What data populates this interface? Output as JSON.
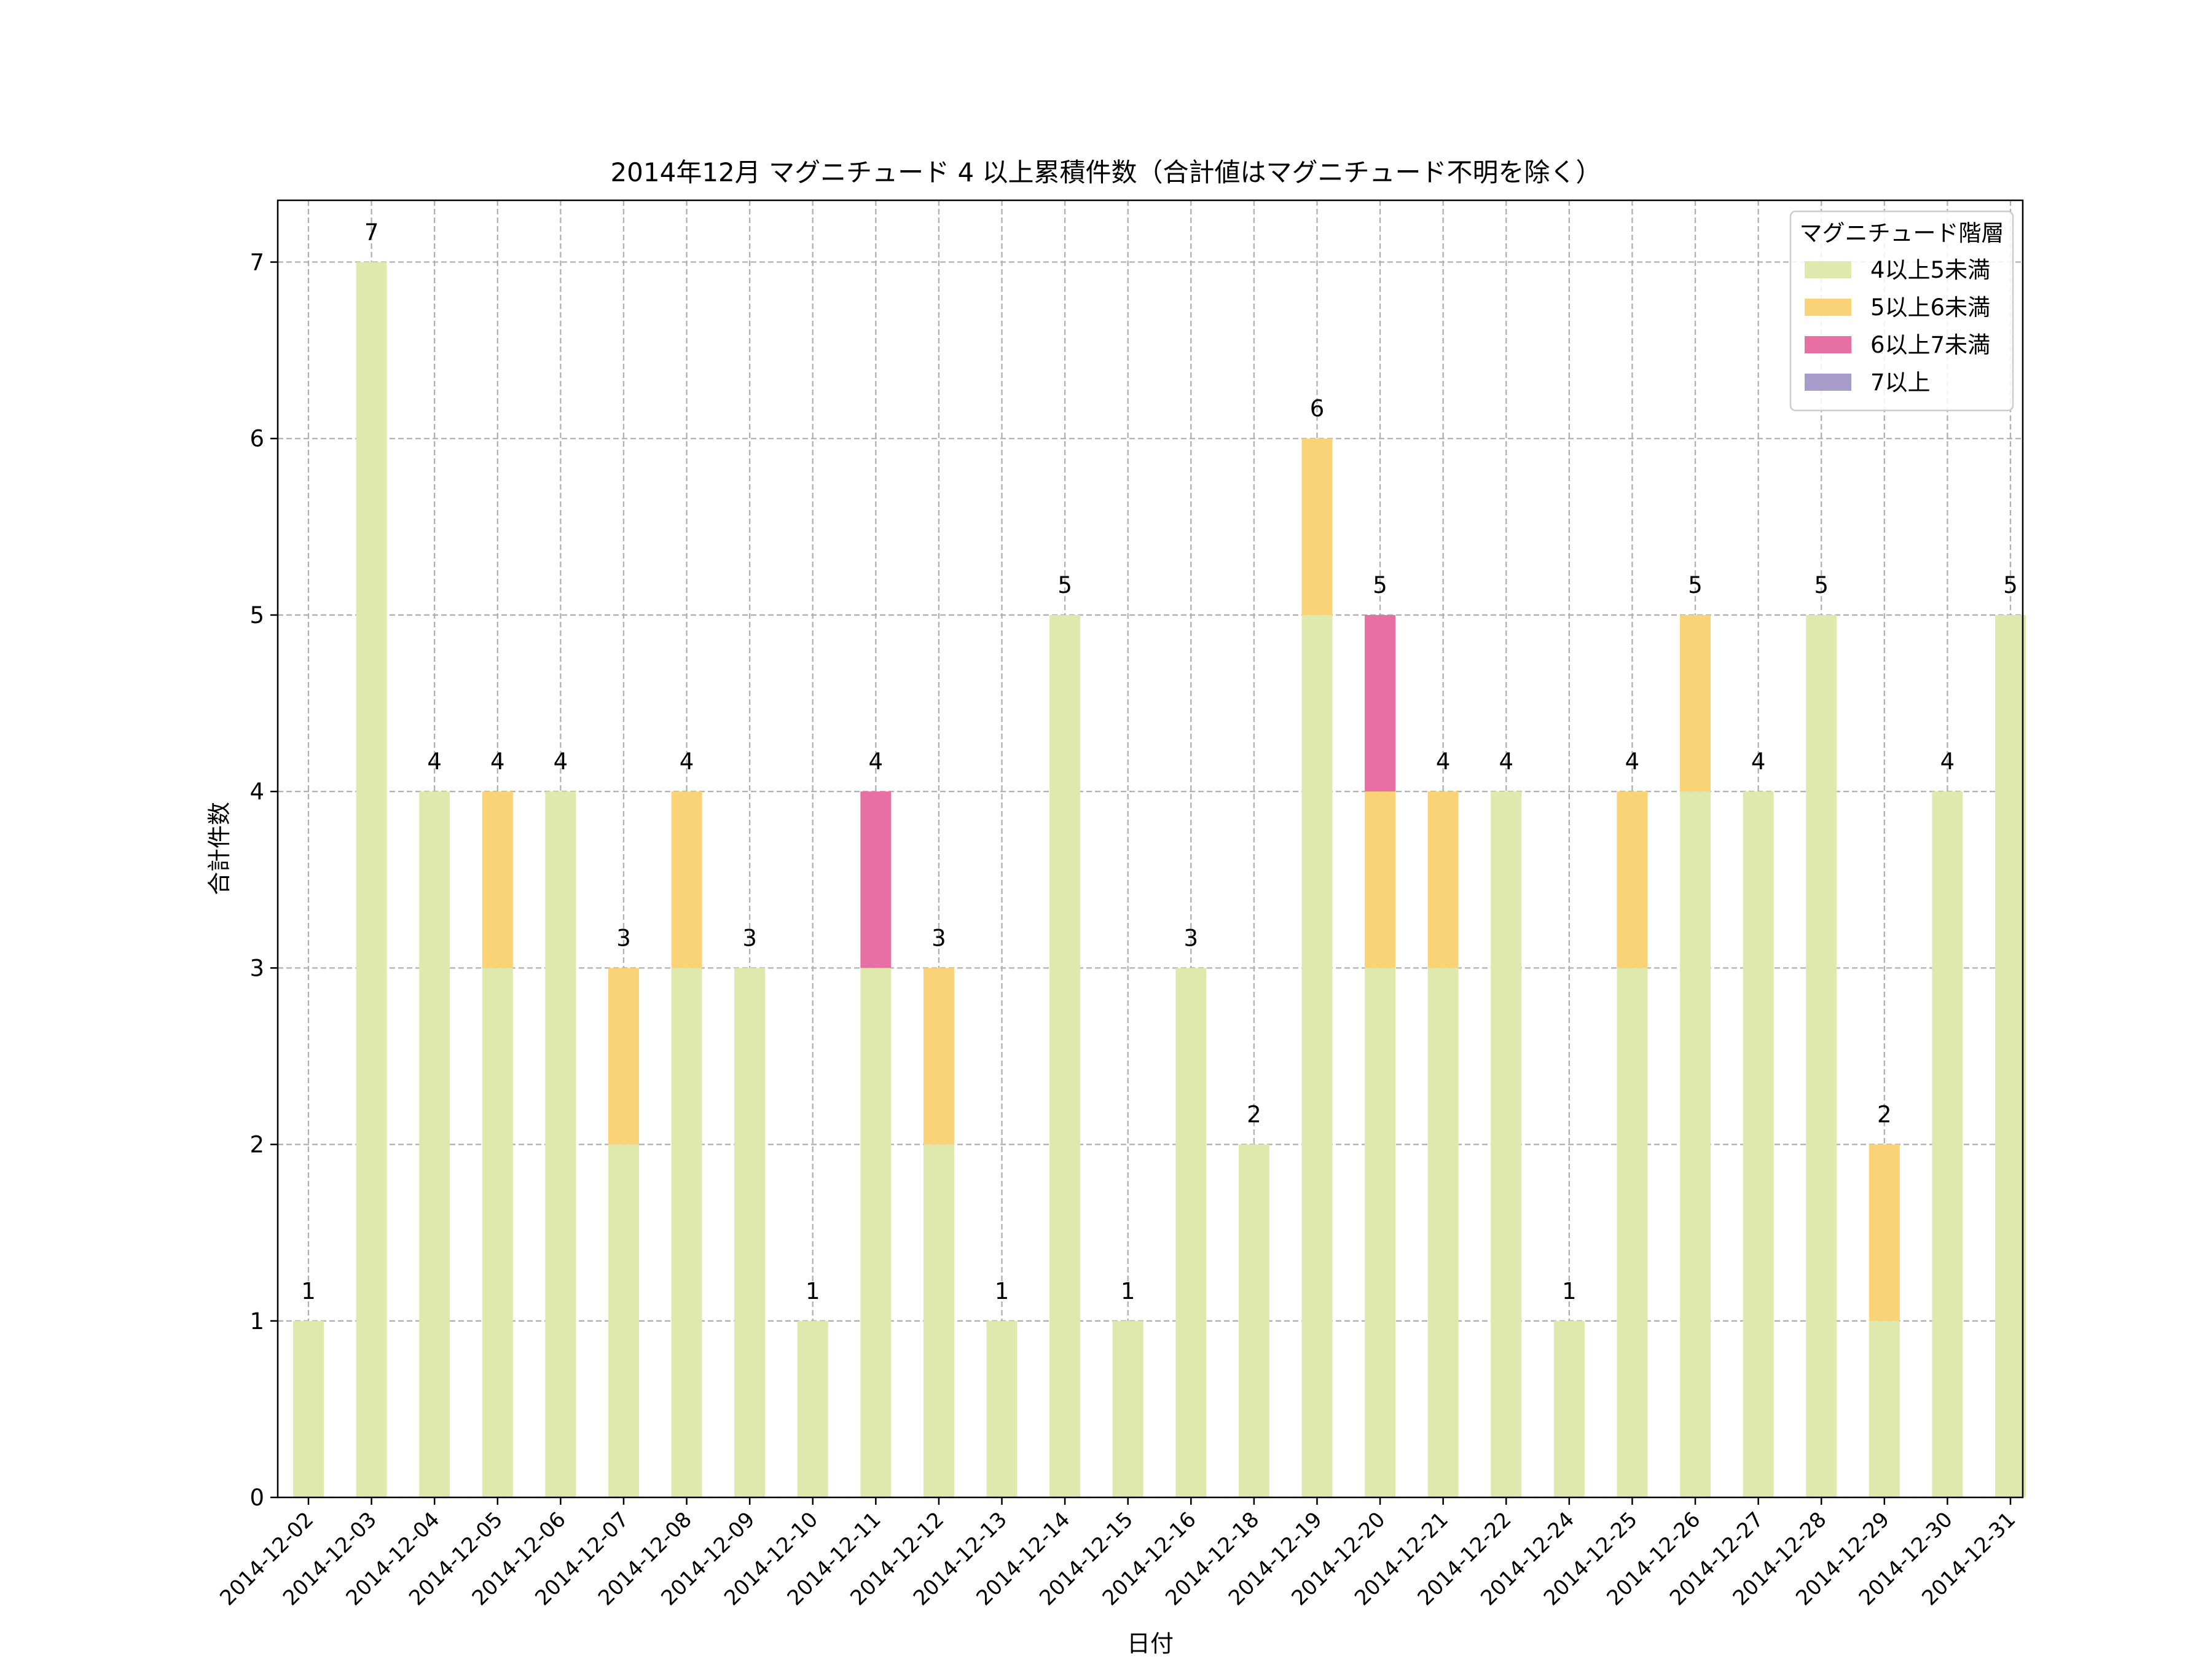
{
  "chart_data": {
    "type": "bar",
    "stacked": true,
    "title": "2014年12月 マグニチュード 4 以上累積件数（合計値はマグニチュード不明を除く）",
    "xlabel": "日付",
    "ylabel": "合計件数",
    "ylim": [
      0,
      7.35
    ],
    "yticks": [
      0,
      1,
      2,
      3,
      4,
      5,
      6,
      7
    ],
    "grid": true,
    "legend": {
      "title": "マグニチュード階層",
      "position": "top-right"
    },
    "categories": [
      "2014-12-02",
      "2014-12-03",
      "2014-12-04",
      "2014-12-05",
      "2014-12-06",
      "2014-12-07",
      "2014-12-08",
      "2014-12-09",
      "2014-12-10",
      "2014-12-11",
      "2014-12-12",
      "2014-12-13",
      "2014-12-14",
      "2014-12-15",
      "2014-12-16",
      "2014-12-18",
      "2014-12-19",
      "2014-12-20",
      "2014-12-21",
      "2014-12-22",
      "2014-12-24",
      "2014-12-25",
      "2014-12-26",
      "2014-12-27",
      "2014-12-28",
      "2014-12-29",
      "2014-12-30",
      "2014-12-31"
    ],
    "series": [
      {
        "name": "4以上5未満",
        "color": "#dfe9ad",
        "values": [
          1,
          7,
          4,
          3,
          4,
          2,
          3,
          3,
          1,
          3,
          2,
          1,
          5,
          1,
          3,
          2,
          5,
          3,
          3,
          4,
          1,
          3,
          4,
          4,
          5,
          1,
          4,
          5
        ]
      },
      {
        "name": "5以上6未満",
        "color": "#fbd377",
        "values": [
          0,
          0,
          0,
          1,
          0,
          1,
          1,
          0,
          0,
          0,
          1,
          0,
          0,
          0,
          0,
          0,
          1,
          1,
          1,
          0,
          0,
          1,
          1,
          0,
          0,
          1,
          0,
          0
        ]
      },
      {
        "name": "6以上7未満",
        "color": "#e86fa4",
        "values": [
          0,
          0,
          0,
          0,
          0,
          0,
          0,
          0,
          0,
          1,
          0,
          0,
          0,
          0,
          0,
          0,
          0,
          1,
          0,
          0,
          0,
          0,
          0,
          0,
          0,
          0,
          0,
          0
        ]
      },
      {
        "name": "7以上",
        "color": "#a89ccb",
        "values": [
          0,
          0,
          0,
          0,
          0,
          0,
          0,
          0,
          0,
          0,
          0,
          0,
          0,
          0,
          0,
          0,
          0,
          0,
          0,
          0,
          0,
          0,
          0,
          0,
          0,
          0,
          0,
          0
        ]
      }
    ],
    "totals": [
      1,
      7,
      4,
      4,
      4,
      3,
      4,
      3,
      1,
      4,
      3,
      1,
      5,
      1,
      3,
      2,
      6,
      5,
      4,
      4,
      1,
      4,
      5,
      4,
      5,
      2,
      4,
      5
    ]
  }
}
